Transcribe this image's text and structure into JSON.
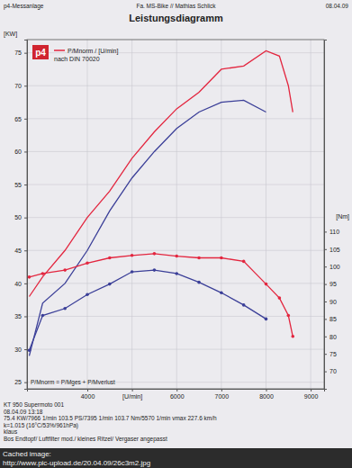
{
  "chart_data": {
    "type": "line",
    "title": "Leistungsdiagramm",
    "header": [
      "p4-Messanlage",
      "Fa. MS-Bike // Mathias Schlick",
      "08.04.09"
    ],
    "y_label": "[KW]",
    "y2_label": "[Nm]",
    "x": [
      2700,
      3000,
      3500,
      4000,
      4500,
      5000,
      5500,
      6000,
      6500,
      7000,
      7500,
      8000,
      8300,
      8500,
      8600
    ],
    "xlim": [
      2650,
      9300
    ],
    "xticks": [
      4000,
      {
        "value": 5000,
        "label": "[U/min]"
      },
      6000,
      7000,
      8000,
      9000
    ],
    "ylim": [
      24,
      77
    ],
    "yticks": [
      25,
      30,
      35,
      40,
      45,
      50,
      55,
      60,
      65,
      70,
      75
    ],
    "y2lim": [
      65,
      165
    ],
    "y2ticks": [
      70,
      75,
      80,
      85,
      90,
      95,
      100,
      105,
      110
    ],
    "grid": true,
    "legend": "top-left",
    "series": [
      {
        "name": "P/Mnorm / [U/min]",
        "color": "#e3263f",
        "values": [
          38,
          41,
          45,
          50,
          54,
          59,
          63,
          66.5,
          69,
          72.5,
          73,
          75.3,
          74.5,
          70,
          66
        ]
      },
      {
        "color": "#3b3f98",
        "values": [
          29,
          37,
          40,
          45,
          51,
          56,
          60,
          63.5,
          66,
          67.5,
          67.8,
          66,
          null,
          null,
          null
        ]
      },
      {
        "color": "#e3263f",
        "axis": "y2",
        "marker": "circle",
        "values": [
          97,
          98,
          99,
          101,
          102.5,
          103.2,
          103.7,
          103,
          102.5,
          102.5,
          101.5,
          95,
          91,
          86,
          80
        ]
      },
      {
        "color": "#3b3f98",
        "axis": "y2",
        "marker": "circle",
        "values": [
          76,
          86,
          88,
          92,
          95,
          98.5,
          99,
          98,
          95.5,
          92.5,
          89,
          85,
          null,
          null,
          null
        ]
      }
    ],
    "annotations": [
      "p4",
      "nach DIN 70020",
      "P/Mnorm = P/Mges + P/Mverlust"
    ],
    "info": [
      "KT 950 Supermoto 001",
      "08.04.09 13:18",
      "75.4 KW/7966 1/min   103.5 PS/7395 1/min   103.7 Nm/5570 1/min   vmax 227.6 km/h",
      "k=1.015 (16°C/53%/961hPa)",
      "klaus",
      "Bos Endtopf/ Luftfilter mod./ kleines Ritzel/ Vergaser angepasst"
    ],
    "footer": [
      "Cached image:",
      "http://www.pic-upload.de/20.04.09/26c3m2.jpg"
    ]
  }
}
